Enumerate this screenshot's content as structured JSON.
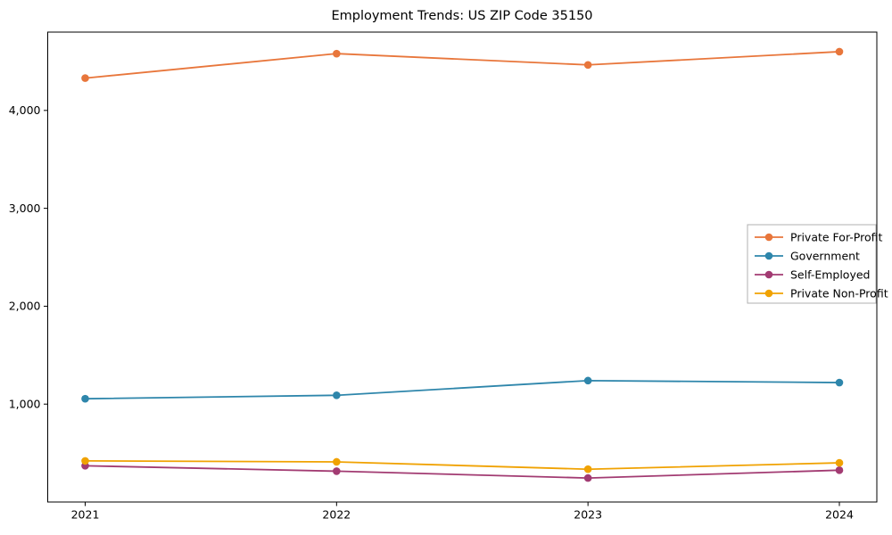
{
  "chart_data": {
    "type": "line",
    "title": "Employment Trends: US ZIP Code 35150",
    "xlabel": "",
    "ylabel": "",
    "x": [
      2021,
      2022,
      2023,
      2024
    ],
    "x_tick_labels": [
      "2021",
      "2022",
      "2023",
      "2024"
    ],
    "y_ticks": [
      1000,
      2000,
      3000,
      4000
    ],
    "y_tick_labels": [
      "1,000",
      "2,000",
      "3,000",
      "4,000"
    ],
    "ylim": [
      0,
      4800
    ],
    "grid": false,
    "legend_position": "center right",
    "series": [
      {
        "name": "Private For-Profit",
        "color": "#E8763B",
        "values": [
          4330,
          4580,
          4465,
          4600
        ]
      },
      {
        "name": "Government",
        "color": "#2E86AB",
        "values": [
          1055,
          1090,
          1240,
          1220
        ]
      },
      {
        "name": "Self-Employed",
        "color": "#A23B72",
        "values": [
          370,
          315,
          245,
          325
        ]
      },
      {
        "name": "Private Non-Profit",
        "color": "#F0A202",
        "values": [
          420,
          410,
          335,
          400
        ]
      }
    ],
    "frame_color": "#000000",
    "legend_border_color": "#b0b0b0"
  }
}
